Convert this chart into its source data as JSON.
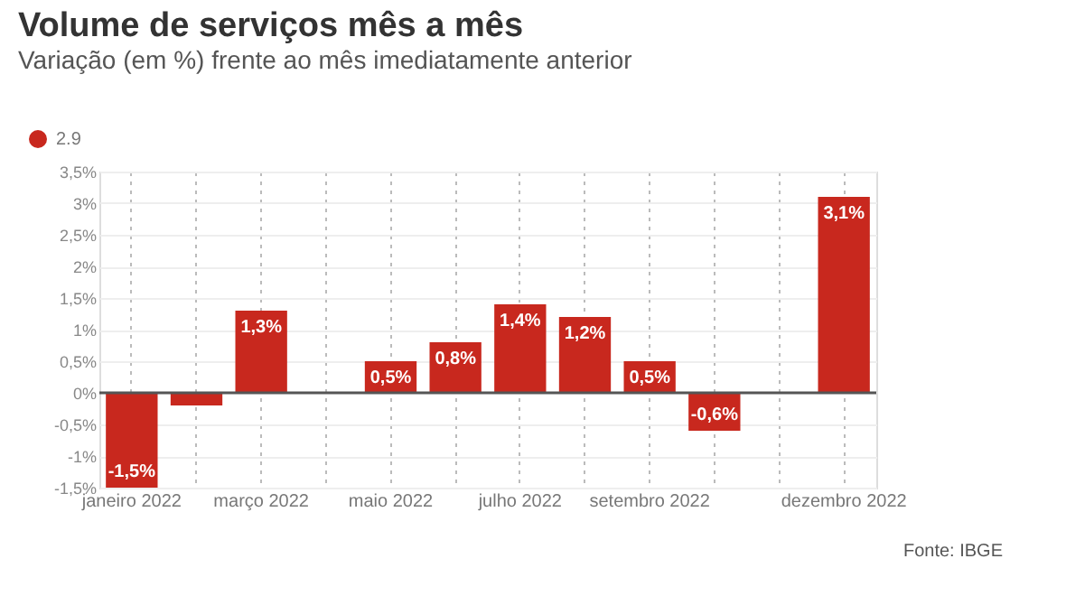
{
  "chart_data": {
    "type": "bar",
    "title": "Volume de serviços mês a mês",
    "subtitle": "Variação (em %) frente ao mês imediatamente anterior",
    "categories": [
      "janeiro 2022",
      null,
      "março 2022",
      null,
      "maio 2022",
      null,
      "julho 2022",
      null,
      "setembro 2022",
      null,
      null,
      "dezembro 2022"
    ],
    "series": [
      {
        "name": "2.9",
        "color": "#c8281e",
        "values": [
          -1.5,
          -0.2,
          1.3,
          null,
          0.5,
          0.8,
          1.4,
          1.2,
          0.5,
          -0.6,
          null,
          3.1
        ],
        "value_labels": [
          "-1,5%",
          null,
          "1,3%",
          null,
          "0,5%",
          "0,8%",
          "1,4%",
          "1,2%",
          "0,5%",
          "-0,6%",
          null,
          "3,1%"
        ]
      }
    ],
    "ylim": [
      -1.5,
      3.5
    ],
    "yticks": [
      {
        "value": -1.5,
        "label": "-1,5%"
      },
      {
        "value": -1,
        "label": "-1%"
      },
      {
        "value": -0.5,
        "label": "-0,5%"
      },
      {
        "value": 0,
        "label": "0%"
      },
      {
        "value": 0.5,
        "label": "0,5%"
      },
      {
        "value": 1,
        "label": "1%"
      },
      {
        "value": 1.5,
        "label": "1,5%"
      },
      {
        "value": 2,
        "label": "2%"
      },
      {
        "value": 2.5,
        "label": "2,5%"
      },
      {
        "value": 3,
        "label": "3%"
      },
      {
        "value": 3.5,
        "label": "3,5%"
      }
    ],
    "ref_lines": [
      {
        "axis": "y",
        "value": 0,
        "label": null,
        "color": "#555555"
      }
    ],
    "grid": true,
    "legend": "top left",
    "annotations": [
      "Fonte: IBGE"
    ]
  }
}
